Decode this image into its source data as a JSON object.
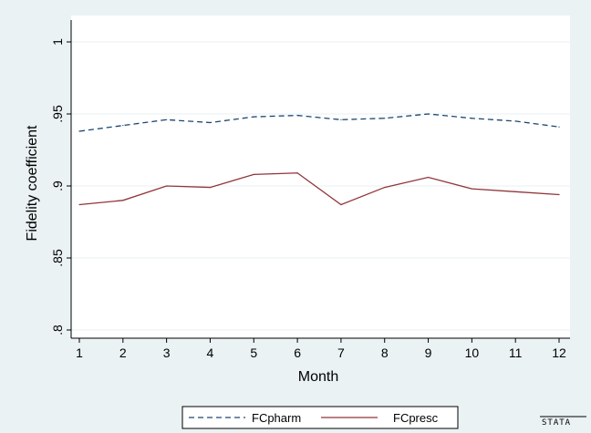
{
  "chart_data": {
    "type": "line",
    "xlabel": "Month",
    "ylabel": "Fidelity coefficient",
    "xlim": [
      1,
      12
    ],
    "ylim": [
      0.8,
      1.0
    ],
    "x_ticks": [
      "1",
      "2",
      "3",
      "4",
      "5",
      "6",
      "7",
      "8",
      "9",
      "10",
      "11",
      "12"
    ],
    "y_ticks": [
      {
        "value": 0.8,
        "label": ".8"
      },
      {
        "value": 0.85,
        "label": ".85"
      },
      {
        "value": 0.9,
        "label": ".9"
      },
      {
        "value": 0.95,
        "label": ".95"
      },
      {
        "value": 1.0,
        "label": "1"
      }
    ],
    "grid": true,
    "x": [
      1,
      2,
      3,
      4,
      5,
      6,
      7,
      8,
      9,
      10,
      11,
      12
    ],
    "series": [
      {
        "name": "FCpharm",
        "color": "#1a476f",
        "style": "dashed",
        "values": [
          0.938,
          0.942,
          0.946,
          0.944,
          0.948,
          0.949,
          0.946,
          0.947,
          0.95,
          0.947,
          0.945,
          0.941
        ]
      },
      {
        "name": "FCpresc",
        "color": "#90353b",
        "style": "solid",
        "values": [
          0.887,
          0.89,
          0.9,
          0.899,
          0.908,
          0.909,
          0.887,
          0.899,
          0.906,
          0.898,
          0.896,
          0.894
        ]
      }
    ],
    "legend_position": "bottom"
  },
  "brand": "STATA"
}
